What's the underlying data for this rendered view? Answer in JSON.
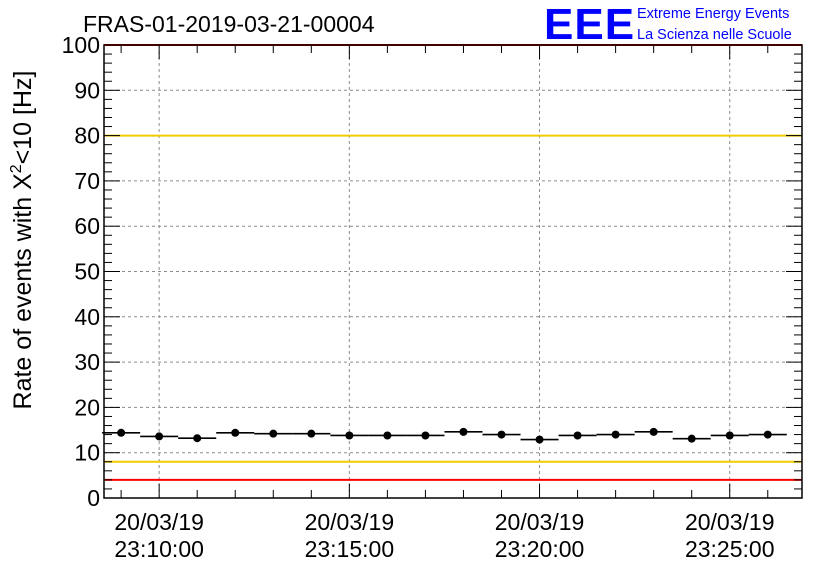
{
  "chart_data": {
    "type": "scatter",
    "title": "FRAS-01-2019-03-21-00004",
    "ylabel_prefix": "Rate of events with X",
    "ylabel_sup": "2",
    "ylabel_suffix": "<10 [Hz]",
    "xlabel": "",
    "ylim": [
      0,
      100
    ],
    "yticks": [
      0,
      10,
      20,
      30,
      40,
      50,
      60,
      70,
      80,
      90,
      100
    ],
    "xlim": [
      -1.45,
      16.9
    ],
    "xticks": [
      {
        "x": 0,
        "date": "20/03/19",
        "time": "23:10:00"
      },
      {
        "x": 5,
        "date": "20/03/19",
        "time": "23:15:00"
      },
      {
        "x": 10,
        "date": "20/03/19",
        "time": "23:20:00"
      },
      {
        "x": 15,
        "date": "20/03/19",
        "time": "23:25:00"
      }
    ],
    "x_unit": "minutes after 23:10:00",
    "bin_width": 1,
    "grid": true,
    "series": [
      {
        "name": "rate",
        "x": [
          -1,
          0,
          1,
          2,
          3,
          4,
          5,
          6,
          7,
          8,
          9,
          10,
          11,
          12,
          13,
          14,
          15,
          16
        ],
        "values": [
          14.4,
          13.6,
          13.2,
          14.4,
          14.2,
          14.2,
          13.8,
          13.8,
          13.8,
          14.6,
          14.0,
          12.9,
          13.8,
          14.0,
          14.6,
          13.1,
          13.8,
          14.0
        ],
        "color": "#000000"
      }
    ],
    "reference_lines": [
      {
        "name": "upper-warning",
        "y": 80,
        "color": "#f2cc00"
      },
      {
        "name": "lower-warning",
        "y": 8,
        "color": "#f2cc00"
      },
      {
        "name": "lower-alarm",
        "y": 4,
        "color": "#ff0000"
      },
      {
        "name": "upper-alarm",
        "y": 100,
        "color": "#ff0000"
      }
    ]
  },
  "logo": {
    "mark": "EEE",
    "line1": "Extreme Energy Events",
    "line2": "La Scienza nelle Scuole",
    "color": "#0000ff"
  }
}
